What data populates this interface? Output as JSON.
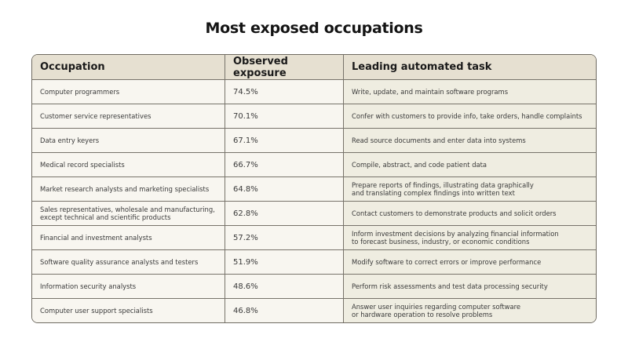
{
  "chart_data": {
    "type": "table",
    "title": "Most exposed occupations",
    "columns": [
      "Occupation",
      "Observed exposure",
      "Leading automated task"
    ],
    "rows": [
      [
        "Computer programmers",
        "74.5%",
        "Write, update, and maintain software programs"
      ],
      [
        "Customer service representatives",
        "70.1%",
        "Confer with customers to provide info, take orders, handle complaints"
      ],
      [
        "Data entry keyers",
        "67.1%",
        "Read source documents and enter data into systems"
      ],
      [
        "Medical record specialists",
        "66.7%",
        "Compile, abstract, and code patient data"
      ],
      [
        "Market research analysts and marketing specialists",
        "64.8%",
        "Prepare reports of findings, illustrating data graphically\nand translating complex findings into written text"
      ],
      [
        "Sales representatives, wholesale and manufacturing,\nexcept technical and scientific products",
        "62.8%",
        "Contact customers to demonstrate products and solicit orders"
      ],
      [
        "Financial and investment analysts",
        "57.2%",
        "Inform investment decisions by analyzing financial information\nto forecast business, industry, or economic conditions"
      ],
      [
        "Software quality assurance analysts and testers",
        "51.9%",
        "Modify software to correct errors or improve performance"
      ],
      [
        "Information security analysts",
        "48.6%",
        "Perform risk assessments and test data processing security"
      ],
      [
        "Computer user support specialists",
        "46.8%",
        "Answer user inquiries regarding computer software\nor hardware operation to resolve problems"
      ]
    ],
    "colors": {
      "header_bg": "#e6e0d1",
      "cell_bg": "#f8f6f0",
      "task_bg": "#efede1",
      "border": "#77736a"
    }
  }
}
